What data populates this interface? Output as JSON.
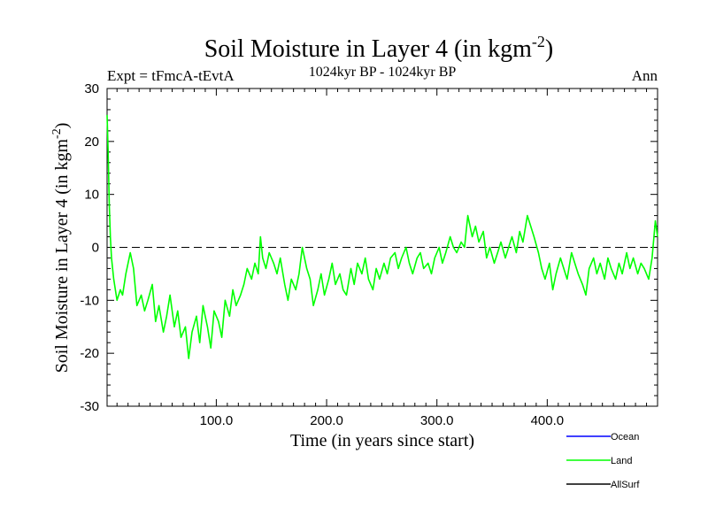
{
  "chart_data": {
    "type": "line",
    "title": "Soil Moisture in Layer 4 (in kgm",
    "title_sup": "-2",
    "title_end": ")",
    "subtitle": "1024kyr BP - 1024kyr BP",
    "left_label": "Expt = tFmcA-tEvtA",
    "right_label": "Ann",
    "xlabel": "Time (in years since start)",
    "ylabel": "Soil Moisture in Layer 4 (in kgm",
    "ylabel_sup": "-2",
    "ylabel_end": ")",
    "xlim": [
      1,
      500
    ],
    "ylim": [
      -30,
      30
    ],
    "x_ticks": [
      100,
      200,
      300,
      400
    ],
    "x_tick_labels": [
      "100.0",
      "200.0",
      "300.0",
      "400.0"
    ],
    "y_ticks": [
      -30,
      -20,
      -10,
      0,
      10,
      20,
      30
    ],
    "y_tick_labels": [
      "-30",
      "-20",
      "-10",
      "0",
      "10",
      "20",
      "30"
    ],
    "reference_line": 0,
    "legend_position": "bottom-right",
    "series": [
      {
        "name": "Ocean",
        "color": "#0000ff",
        "x": [],
        "values": []
      },
      {
        "name": "Land",
        "color": "#00ff00",
        "x": [
          1,
          2,
          3,
          4,
          5,
          7,
          10,
          13,
          15,
          18,
          22,
          25,
          28,
          32,
          35,
          38,
          42,
          45,
          48,
          52,
          55,
          58,
          62,
          65,
          68,
          72,
          75,
          78,
          82,
          85,
          88,
          92,
          95,
          98,
          102,
          105,
          108,
          112,
          115,
          118,
          122,
          125,
          128,
          132,
          135,
          138,
          140,
          142,
          145,
          148,
          152,
          155,
          158,
          162,
          165,
          168,
          172,
          175,
          178,
          182,
          185,
          188,
          192,
          195,
          198,
          202,
          205,
          208,
          212,
          215,
          218,
          222,
          225,
          228,
          232,
          235,
          238,
          242,
          245,
          248,
          252,
          255,
          258,
          262,
          265,
          268,
          272,
          275,
          278,
          282,
          285,
          288,
          292,
          295,
          298,
          302,
          305,
          308,
          312,
          315,
          318,
          322,
          325,
          328,
          332,
          335,
          338,
          342,
          345,
          348,
          352,
          355,
          358,
          362,
          365,
          368,
          372,
          375,
          378,
          382,
          385,
          388,
          392,
          395,
          398,
          402,
          405,
          408,
          412,
          415,
          418,
          422,
          425,
          428,
          432,
          435,
          438,
          442,
          445,
          448,
          452,
          455,
          458,
          462,
          465,
          468,
          472,
          475,
          478,
          482,
          485,
          488,
          492,
          495,
          498,
          500
        ],
        "values": [
          25,
          18,
          8,
          2,
          -2,
          -6,
          -10,
          -8,
          -9,
          -5,
          -1,
          -4,
          -11,
          -9,
          -12,
          -10,
          -7,
          -14,
          -11,
          -16,
          -13,
          -9,
          -15,
          -12,
          -17,
          -15,
          -21,
          -16,
          -13,
          -18,
          -11,
          -15,
          -19,
          -12,
          -14,
          -17,
          -10,
          -13,
          -8,
          -11,
          -9,
          -7,
          -4,
          -6,
          -3,
          -5,
          2,
          -2,
          -4,
          -1,
          -3,
          -5,
          -2,
          -7,
          -10,
          -6,
          -8,
          -5,
          0,
          -4,
          -6,
          -11,
          -8,
          -5,
          -9,
          -6,
          -3,
          -7,
          -5,
          -8,
          -9,
          -4,
          -7,
          -3,
          -5,
          -2,
          -6,
          -8,
          -4,
          -6,
          -3,
          -5,
          -2,
          -1,
          -4,
          -2,
          0,
          -3,
          -5,
          -2,
          -1,
          -4,
          -3,
          -5,
          -2,
          0,
          -3,
          -1,
          2,
          0,
          -1,
          1,
          0,
          6,
          2,
          4,
          1,
          3,
          -2,
          0,
          -3,
          -1,
          1,
          -2,
          0,
          2,
          -1,
          3,
          1,
          6,
          4,
          2,
          -1,
          -4,
          -6,
          -3,
          -8,
          -5,
          -2,
          -4,
          -6,
          -1,
          -3,
          -5,
          -7,
          -9,
          -4,
          -2,
          -5,
          -3,
          -6,
          -2,
          -4,
          -6,
          -3,
          -5,
          -1,
          -4,
          -2,
          -5,
          -3,
          -4,
          -6,
          -2,
          5,
          2
        ]
      },
      {
        "name": "AllSurf",
        "color": "#000000",
        "x": [],
        "values": []
      }
    ]
  }
}
